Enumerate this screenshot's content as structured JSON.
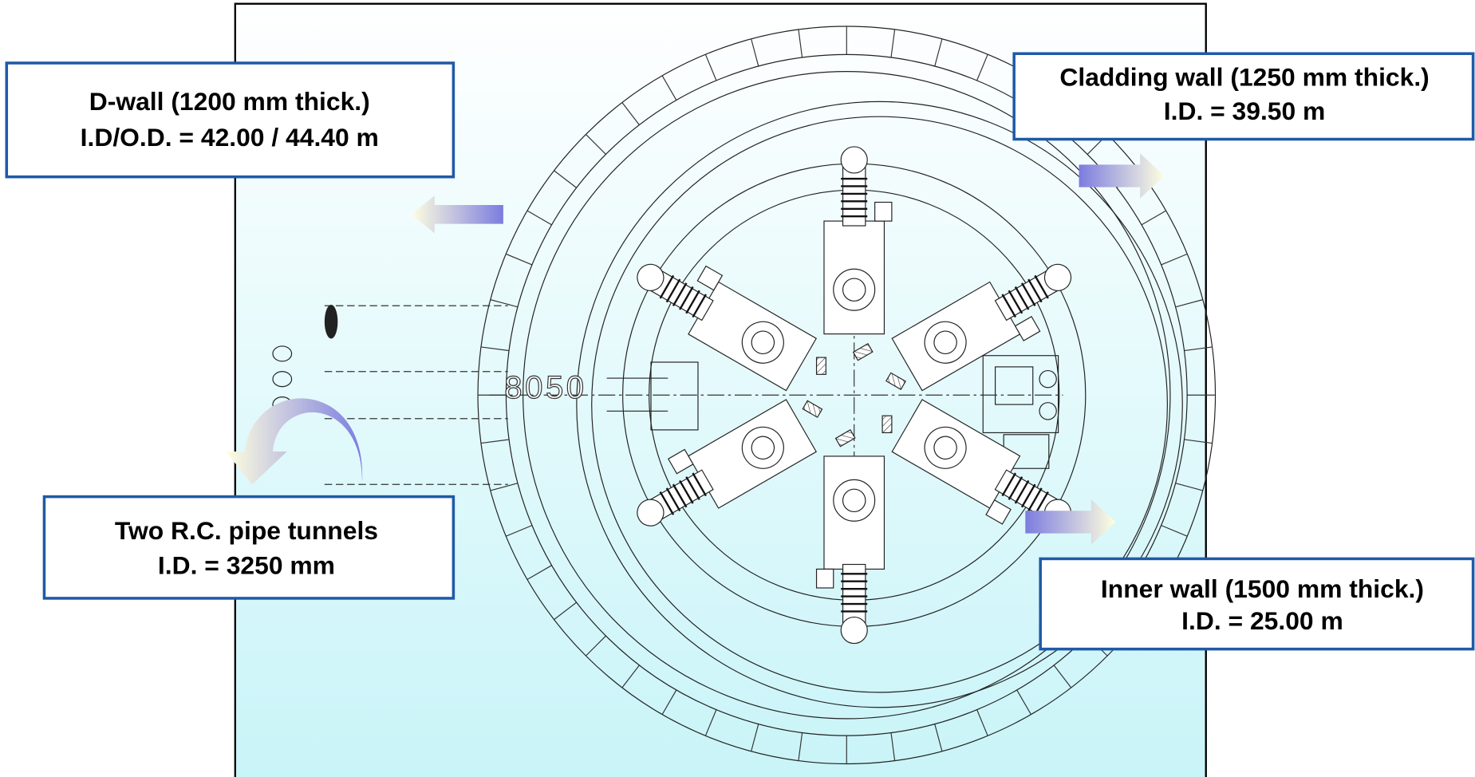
{
  "callouts": [
    {
      "lines": [
        "D-wall (1200 mm thick.)",
        "I.D/O.D. = 42.00 / 44.40 m"
      ]
    },
    {
      "lines": [
        "Cladding wall (1250 mm thick.)",
        "I.D. = 39.50 m"
      ]
    },
    {
      "lines": [
        "Two R.C. pipe tunnels",
        "I.D.  = 3250 mm"
      ]
    },
    {
      "lines": [
        "Inner wall (1500 mm thick.)",
        "I.D. = 25.00 m"
      ]
    }
  ],
  "drawing": {
    "dimension_label": "8050"
  }
}
